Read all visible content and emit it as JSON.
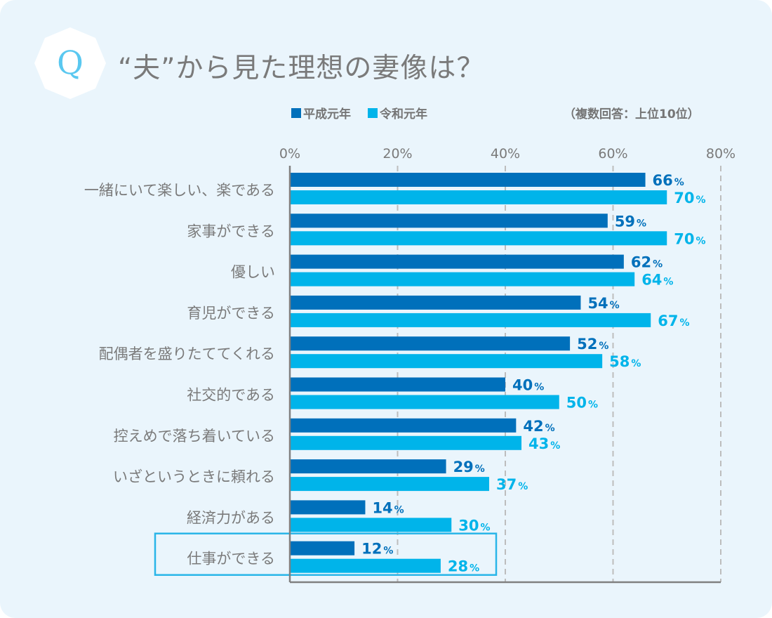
{
  "header": {
    "badge_letter": "Q",
    "title": "“夫”から見た理想の妻像は？",
    "note": "（複数回答：上位10位）"
  },
  "legend": [
    {
      "label": "平成元年",
      "color": "#0070bb"
    },
    {
      "label": "令和元年",
      "color": "#00b4ea"
    }
  ],
  "colors": {
    "panel_bg": "#eaf5fc",
    "badge_q": "#5ac8f0",
    "text": "#7a7a7a",
    "highlight_border": "#29b5e8",
    "grid": "#bdbdbd",
    "axis": "#808080"
  },
  "chart_data": {
    "type": "bar",
    "orientation": "horizontal",
    "title": "“夫”から見た理想の妻像は？",
    "subtitle": "（複数回答：上位10位）",
    "xlabel": "",
    "ylabel": "",
    "xlim": [
      0,
      80
    ],
    "ticks": [
      0,
      20,
      40,
      60,
      80
    ],
    "tick_labels": [
      "0%",
      "20%",
      "40%",
      "60%",
      "80%"
    ],
    "grid": true,
    "legend_position": "top",
    "value_suffix": "%",
    "categories": [
      "一緒にいて楽しい、楽である",
      "家事ができる",
      "優しい",
      "育児ができる",
      "配偶者を盛りたててくれる",
      "社交的である",
      "控えめで落ち着いている",
      "いざというときに頼れる",
      "経済力がある",
      "仕事ができる"
    ],
    "highlighted_category": "仕事ができる",
    "series": [
      {
        "name": "平成元年",
        "color": "#0070bb",
        "values": [
          66,
          59,
          62,
          54,
          52,
          40,
          42,
          29,
          14,
          12
        ]
      },
      {
        "name": "令和元年",
        "color": "#00b4ea",
        "values": [
          70,
          70,
          64,
          67,
          58,
          50,
          43,
          37,
          30,
          28
        ]
      }
    ]
  }
}
